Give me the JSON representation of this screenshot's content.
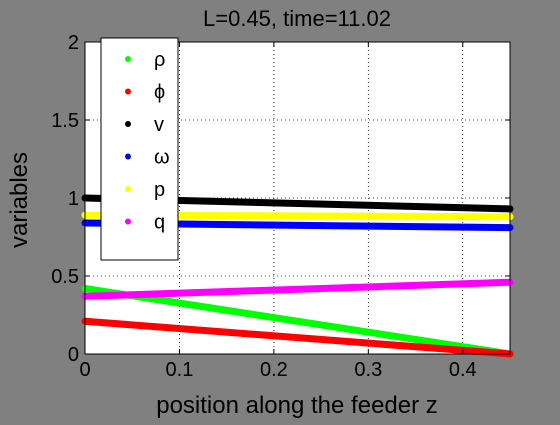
{
  "chart_data": {
    "type": "scatter",
    "title": "L=0.45, time=11.02",
    "xlabel": "position along the feeder z",
    "ylabel": "variables",
    "xlim": [
      0,
      0.45
    ],
    "ylim": [
      0,
      2
    ],
    "xticks": [
      0,
      0.1,
      0.2,
      0.3,
      0.4
    ],
    "yticks": [
      0,
      0.5,
      1,
      1.5,
      2
    ],
    "xtick_labels": [
      "0",
      "0.1",
      "0.2",
      "0.3",
      "0.4"
    ],
    "ytick_labels": [
      "0",
      "0.5",
      "1",
      "1.5",
      "2"
    ],
    "grid": true,
    "legend_position": "top-left",
    "x": [
      0,
      0.45
    ],
    "series": [
      {
        "name": "ρ",
        "color": "#00ff00",
        "values": [
          0.42,
          0.0
        ]
      },
      {
        "name": "ϕ",
        "color": "#ff0000",
        "values": [
          0.21,
          0.0
        ]
      },
      {
        "name": "v",
        "color": "#000000",
        "values": [
          1.0,
          0.93
        ]
      },
      {
        "name": "ω",
        "color": "#0000ff",
        "values": [
          0.84,
          0.81
        ]
      },
      {
        "name": "p",
        "color": "#ffff00",
        "values": [
          0.89,
          0.88
        ]
      },
      {
        "name": "q",
        "color": "#ff00ff",
        "values": [
          0.37,
          0.46
        ]
      }
    ]
  }
}
